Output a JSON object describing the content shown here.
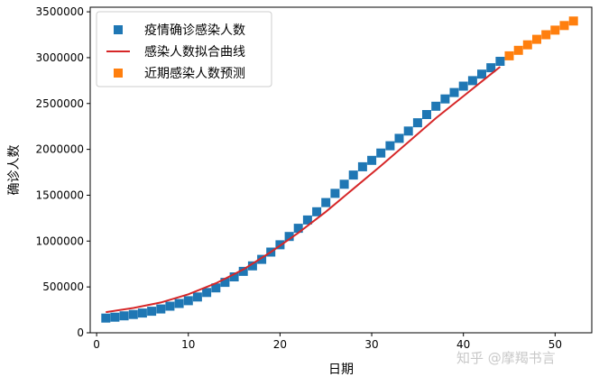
{
  "chart_data": {
    "type": "scatter",
    "xlabel": "日期",
    "ylabel": "确诊人数",
    "xlim": [
      -0.7,
      54
    ],
    "ylim": [
      0,
      3550000
    ],
    "x_ticks": [
      0,
      10,
      20,
      30,
      40,
      50
    ],
    "y_ticks": [
      0,
      500000,
      1000000,
      1500000,
      2000000,
      2500000,
      3000000,
      3500000
    ],
    "grid": false,
    "legend_position": "top-left",
    "series": [
      {
        "name": "疫情确诊感染人数",
        "kind": "scatter",
        "marker": "square",
        "color": "#1f77b4",
        "x": [
          1,
          2,
          3,
          4,
          5,
          6,
          7,
          8,
          9,
          10,
          11,
          12,
          13,
          14,
          15,
          16,
          17,
          18,
          19,
          20,
          21,
          22,
          23,
          24,
          25,
          26,
          27,
          28,
          29,
          30,
          31,
          32,
          33,
          34,
          35,
          36,
          37,
          38,
          39,
          40,
          41,
          42,
          43,
          44
        ],
        "y": [
          160000,
          170000,
          185000,
          200000,
          215000,
          235000,
          260000,
          290000,
          320000,
          350000,
          390000,
          440000,
          490000,
          550000,
          610000,
          670000,
          730000,
          800000,
          880000,
          960000,
          1050000,
          1140000,
          1230000,
          1320000,
          1420000,
          1520000,
          1620000,
          1720000,
          1810000,
          1880000,
          1960000,
          2040000,
          2120000,
          2200000,
          2290000,
          2380000,
          2470000,
          2550000,
          2620000,
          2690000,
          2750000,
          2820000,
          2890000,
          2960000
        ]
      },
      {
        "name": "感染人数拟合曲线",
        "kind": "line",
        "color": "#d62728",
        "x": [
          1,
          4,
          7,
          10,
          13,
          16,
          19,
          22,
          25,
          28,
          31,
          34,
          37,
          40,
          43,
          44
        ],
        "y": [
          225000,
          270000,
          330000,
          420000,
          540000,
          690000,
          880000,
          1090000,
          1320000,
          1570000,
          1820000,
          2080000,
          2340000,
          2580000,
          2820000,
          2900000
        ]
      },
      {
        "name": "近期感染人数预测",
        "kind": "scatter",
        "marker": "square",
        "color": "#ff7f0e",
        "x": [
          45,
          46,
          47,
          48,
          49,
          50,
          51,
          52
        ],
        "y": [
          3020000,
          3080000,
          3140000,
          3200000,
          3250000,
          3300000,
          3350000,
          3400000
        ]
      }
    ]
  },
  "watermark": "知乎 @摩羯书言"
}
